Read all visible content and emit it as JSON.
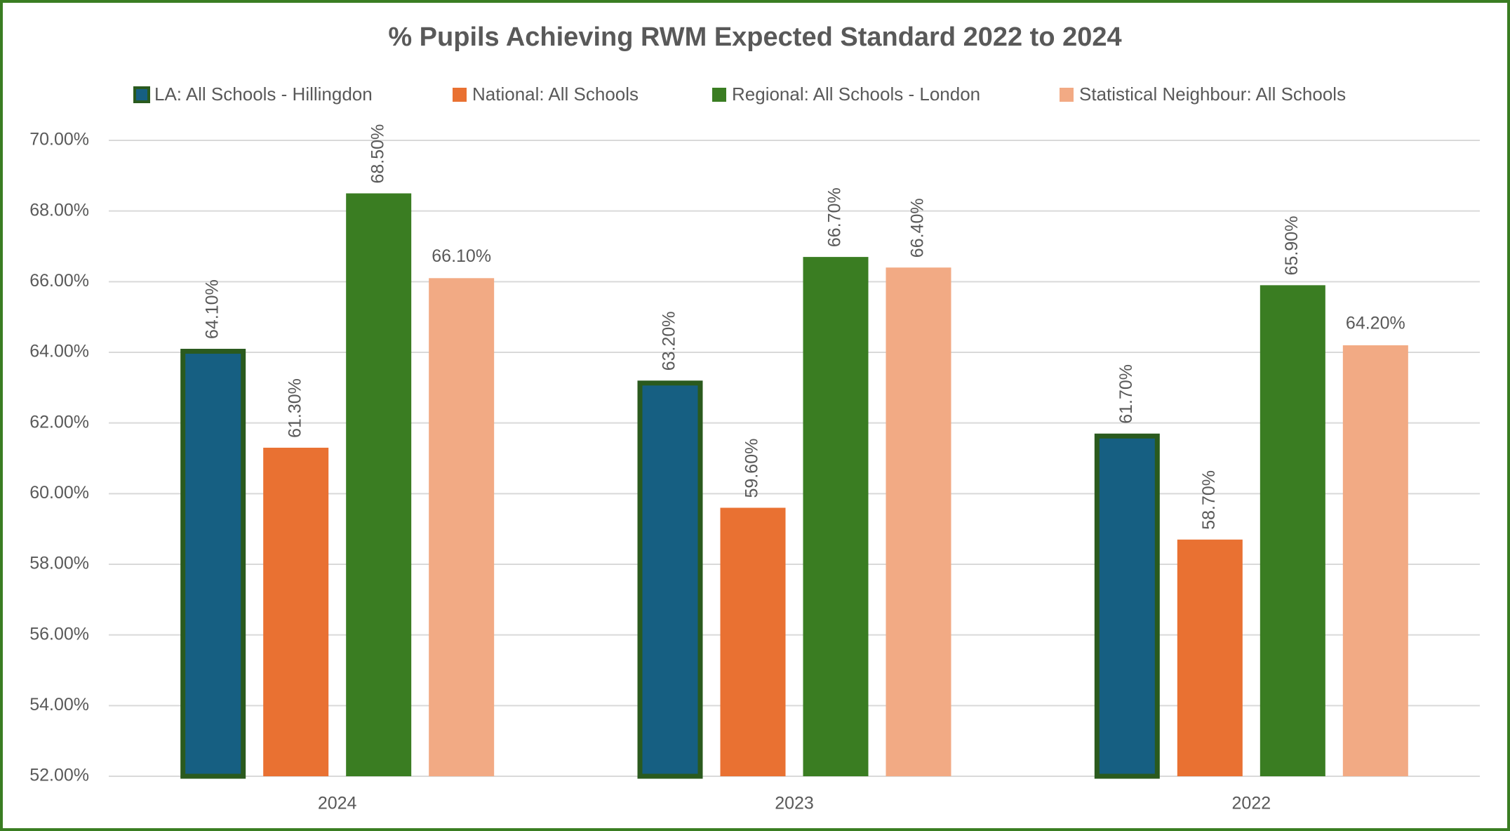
{
  "chart_data": {
    "type": "bar",
    "title": "% Pupils Achieving RWM Expected Standard 2022 to 2024",
    "categories": [
      "2024",
      "2023",
      "2022"
    ],
    "series": [
      {
        "name": "LA: All Schools - Hillingdon",
        "color": "#165f82",
        "edgecolor": "#2a5a1e",
        "values": [
          64.1,
          63.2,
          61.7
        ],
        "value_labels": [
          "64.10%",
          "63.20%",
          "61.70%"
        ]
      },
      {
        "name": "National: All Schools",
        "color": "#e97132",
        "values": [
          61.3,
          59.6,
          58.7
        ],
        "value_labels": [
          "61.30%",
          "59.60%",
          "58.70%"
        ]
      },
      {
        "name": "Regional: All Schools - London",
        "color": "#3a7d22",
        "values": [
          68.5,
          66.7,
          65.9
        ],
        "value_labels": [
          "68.50%",
          "66.70%",
          "65.90%"
        ]
      },
      {
        "name": "Statistical Neighbour: All Schools",
        "color": "#f2aa84",
        "values": [
          66.1,
          66.4,
          64.2
        ],
        "value_labels": [
          "66.10%",
          "66.40%",
          "64.20%"
        ]
      }
    ],
    "ylim": [
      52,
      70
    ],
    "yticks": [
      {
        "value": 52,
        "label": "52.00%"
      },
      {
        "value": 54,
        "label": "54.00%"
      },
      {
        "value": 56,
        "label": "56.00%"
      },
      {
        "value": 58,
        "label": "58.00%"
      },
      {
        "value": 60,
        "label": "60.00%"
      },
      {
        "value": 62,
        "label": "62.00%"
      },
      {
        "value": 64,
        "label": "64.00%"
      },
      {
        "value": 66,
        "label": "66.00%"
      },
      {
        "value": 68,
        "label": "68.00%"
      },
      {
        "value": 70,
        "label": "70.00%"
      }
    ],
    "grid": true,
    "legend": "top"
  }
}
